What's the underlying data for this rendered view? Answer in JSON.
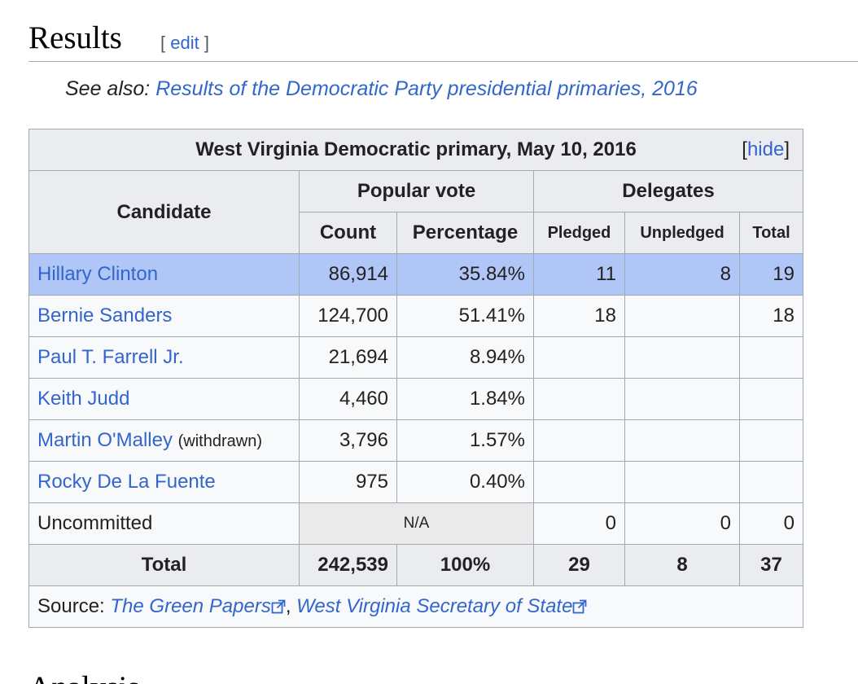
{
  "header": {
    "title": "Results",
    "edit": "edit"
  },
  "see_also": {
    "prefix": "See also:",
    "link": "Results of the Democratic Party presidential primaries, 2016"
  },
  "table": {
    "caption": "West Virginia Democratic primary, May 10, 2016",
    "hide": "hide",
    "headers": {
      "candidate": "Candidate",
      "popular_vote": "Popular vote",
      "delegates": "Delegates",
      "count": "Count",
      "percentage": "Percentage",
      "pledged": "Pledged",
      "unpledged": "Unpledged",
      "total": "Total"
    },
    "rows": [
      {
        "candidate": "Hillary Clinton",
        "count": "86,914",
        "percentage": "35.84%",
        "pledged": "11",
        "unpledged": "8",
        "total": "19",
        "highlight": true
      },
      {
        "candidate": "Bernie Sanders",
        "count": "124,700",
        "percentage": "51.41%",
        "pledged": "18",
        "total": "18"
      },
      {
        "candidate": "Paul T. Farrell Jr.",
        "count": "21,694",
        "percentage": "8.94%"
      },
      {
        "candidate": "Keith Judd",
        "count": "4,460",
        "percentage": "1.84%"
      },
      {
        "candidate": "Martin O'Malley",
        "note": "(withdrawn)",
        "count": "3,796",
        "percentage": "1.57%"
      },
      {
        "candidate": "Rocky De La Fuente",
        "count": "975",
        "percentage": "0.40%"
      },
      {
        "candidate": "Uncommitted",
        "popular_vote": "N/A",
        "pledged": "0",
        "unpledged": "0",
        "total": "0",
        "plain": true
      }
    ],
    "total_row": {
      "label": "Total",
      "count": "242,539",
      "percentage": "100%",
      "pledged": "29",
      "unpledged": "8",
      "total": "37"
    },
    "source": {
      "prefix": "Source:",
      "links": [
        "The Green Papers",
        "West Virginia Secretary of State"
      ],
      "separator": ","
    }
  },
  "next_heading": "Analysis"
}
